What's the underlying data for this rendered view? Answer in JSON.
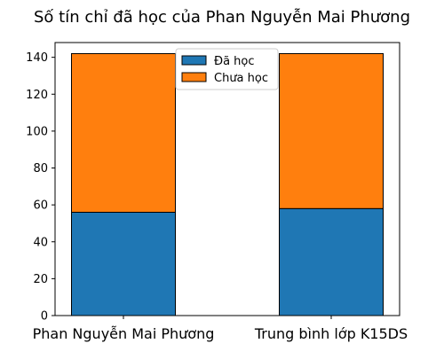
{
  "chart_data": {
    "type": "bar",
    "stacked": true,
    "title": "Số tín chỉ đã học của Phan Nguyễn Mai Phương",
    "xlabel": "",
    "ylabel": "",
    "categories": [
      "Phan Nguyễn Mai Phương",
      "Trung bình lớp K15DS"
    ],
    "series": [
      {
        "name": "Đã học",
        "values": [
          56,
          58
        ],
        "color": "#1f77b4"
      },
      {
        "name": "Chưa học",
        "values": [
          86,
          84
        ],
        "color": "#ff7f0e"
      }
    ],
    "ylim": [
      0,
      148
    ],
    "yticks": [
      "0",
      "20",
      "40",
      "60",
      "80",
      "100",
      "120",
      "140"
    ],
    "grid": false,
    "legend_position": "top-center"
  }
}
